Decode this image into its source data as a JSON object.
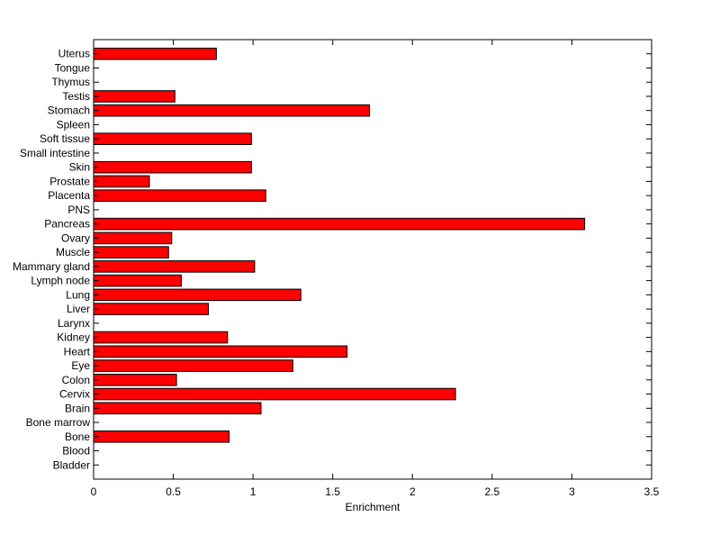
{
  "chart_data": {
    "type": "bar",
    "orientation": "horizontal",
    "title": "",
    "xlabel": "Enrichment",
    "ylabel": "",
    "xlim": [
      0,
      3.5
    ],
    "xticks": [
      "0",
      "0.5",
      "1",
      "1.5",
      "2",
      "2.5",
      "3",
      "3.5"
    ],
    "grid": false,
    "bar_color": "#ff0000",
    "categories": [
      "Uterus",
      "Tongue",
      "Thymus",
      "Testis",
      "Stomach",
      "Spleen",
      "Soft tissue",
      "Small intestine",
      "Skin",
      "Prostate",
      "Placenta",
      "PNS",
      "Pancreas",
      "Ovary",
      "Muscle",
      "Mammary gland",
      "Lymph node",
      "Lung",
      "Liver",
      "Larynx",
      "Kidney",
      "Heart",
      "Eye",
      "Colon",
      "Cervix",
      "Brain",
      "Bone marrow",
      "Bone",
      "Blood",
      "Bladder"
    ],
    "values": [
      0.77,
      0,
      0,
      0.51,
      1.73,
      0,
      0.99,
      0,
      0.99,
      0.35,
      1.08,
      0,
      3.08,
      0.49,
      0.47,
      1.01,
      0.55,
      1.3,
      0.72,
      0,
      0.84,
      1.59,
      1.25,
      0.52,
      2.27,
      1.05,
      0,
      0.85,
      0,
      0
    ]
  }
}
